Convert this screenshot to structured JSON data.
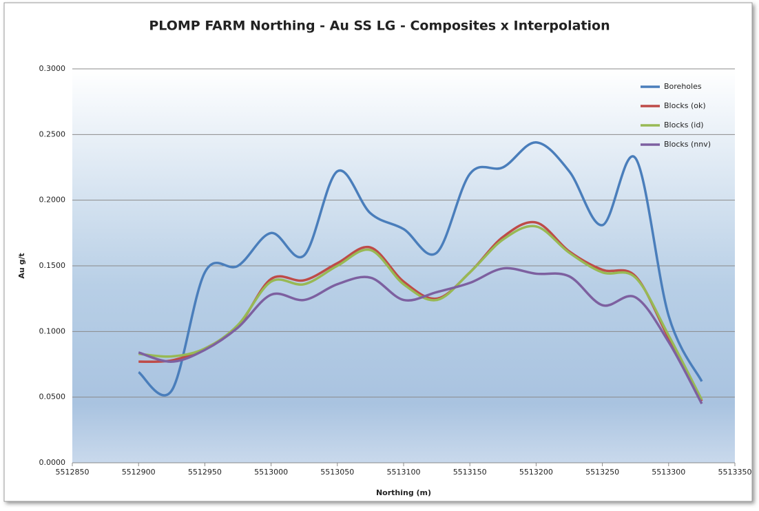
{
  "chart_data": {
    "type": "line",
    "title": "PLOMP FARM Northing - Au SS LG - Composites x Interpolation",
    "x_label": "Northing (m)",
    "y_label": "Au g/t",
    "x": [
      5512900,
      5512925,
      5512950,
      5512975,
      5513000,
      5513025,
      5513050,
      5513075,
      5513100,
      5513125,
      5513150,
      5513175,
      5513200,
      5513225,
      5513250,
      5513275,
      5513300,
      5513325
    ],
    "series": [
      {
        "name": "Boreholes",
        "color": "#4a7ebb",
        "values": [
          0.069,
          0.055,
          0.145,
          0.15,
          0.175,
          0.158,
          0.222,
          0.19,
          0.178,
          0.16,
          0.22,
          0.225,
          0.244,
          0.222,
          0.181,
          0.232,
          0.112,
          0.062
        ]
      },
      {
        "name": "Blocks (ok)",
        "color": "#be4b48",
        "values": [
          0.077,
          0.078,
          0.087,
          0.104,
          0.14,
          0.139,
          0.152,
          0.164,
          0.138,
          0.125,
          0.145,
          0.172,
          0.183,
          0.161,
          0.147,
          0.142,
          0.095,
          0.047
        ]
      },
      {
        "name": "Blocks (id)",
        "color": "#98b954",
        "values": [
          0.083,
          0.081,
          0.087,
          0.105,
          0.138,
          0.136,
          0.15,
          0.162,
          0.136,
          0.124,
          0.145,
          0.17,
          0.18,
          0.16,
          0.145,
          0.141,
          0.097,
          0.048
        ]
      },
      {
        "name": "Blocks (nnv)",
        "color": "#7d60a0",
        "values": [
          0.084,
          0.077,
          0.086,
          0.103,
          0.128,
          0.124,
          0.136,
          0.141,
          0.124,
          0.13,
          0.137,
          0.148,
          0.144,
          0.142,
          0.12,
          0.126,
          0.092,
          0.045
        ]
      }
    ],
    "xlim": [
      5512850,
      5513350
    ],
    "xticks": [
      5512850,
      5512900,
      5512950,
      5513000,
      5513050,
      5513100,
      5513150,
      5513200,
      5513250,
      5513300,
      5513350
    ],
    "ylim": [
      0,
      0.3
    ],
    "yticks": [
      {
        "value": 0,
        "label": "0.0000"
      },
      {
        "value": 0.05,
        "label": "0.0500"
      },
      {
        "value": 0.1,
        "label": "0.1000"
      },
      {
        "value": 0.15,
        "label": "0.1500"
      },
      {
        "value": 0.2,
        "label": "0.2000"
      },
      {
        "value": 0.25,
        "label": "0.2500"
      },
      {
        "value": 0.3,
        "label": "0.3000"
      }
    ],
    "grid": true,
    "smooth": true,
    "legend": "top-right"
  }
}
